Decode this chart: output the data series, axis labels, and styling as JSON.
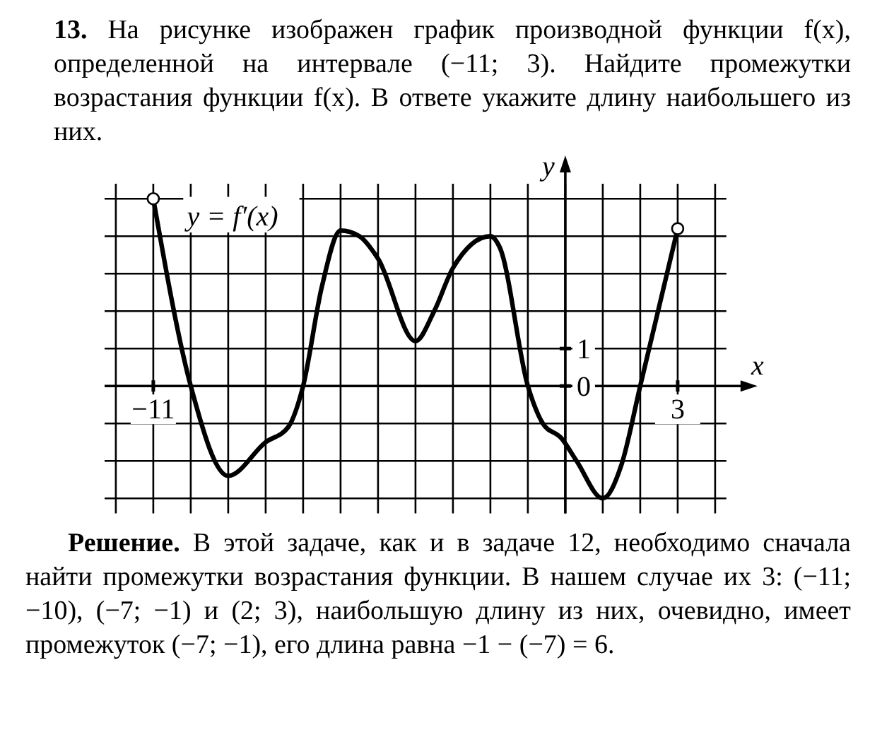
{
  "chart_data": {
    "type": "line",
    "title": "13. На рисунке изображен график производной функции f(x), определенной на интервале (−11; 3). Найдите промежутки возрастания функции f(x). В ответе укажите длину наибольшего из них.",
    "xlabel": "x",
    "ylabel": "y",
    "annotations": [
      "y = f′(x)",
      "Решение. В этой задаче, как и в задаче 12, необходимо сначала найти промежутки возрастания функции. В нашем случае их 3: (−11; −10), (−7; −1) и (2; 3), наибольшую длину из них, очевидно, имеет промежуток (−7; −1), его длина равна −1 − (−7) = 6."
    ],
    "x": [
      -11,
      -10,
      -9,
      -8,
      -7.4,
      -7,
      -6.5,
      -6,
      -5.5,
      -5,
      -4,
      -3.5,
      -3,
      -2,
      -1.75,
      -1,
      -0.6,
      -0.1,
      0.3,
      1,
      1.5,
      2,
      3
    ],
    "series": [
      {
        "color": "#000000",
        "values": [
          5,
          0,
          -2.4,
          -1.5,
          -1.1,
          0,
          2.65,
          4.15,
          4,
          3.4,
          1.2,
          2,
          3.15,
          4,
          3.7,
          0,
          -1,
          -1.4,
          -2,
          -3,
          -2.1,
          0,
          4.2
        ]
      }
    ],
    "xlim": [
      -12.3,
      4.3
    ],
    "ylim": [
      -3.4,
      5.4
    ],
    "xticks": [
      {
        "value": -12,
        "label": null
      },
      {
        "value": -11,
        "label": "−11"
      },
      {
        "value": -10,
        "label": null
      },
      {
        "value": -9,
        "label": null
      },
      {
        "value": -8,
        "label": null
      },
      {
        "value": -7,
        "label": null
      },
      {
        "value": -6,
        "label": null
      },
      {
        "value": -5,
        "label": null
      },
      {
        "value": -4,
        "label": null
      },
      {
        "value": -3,
        "label": null
      },
      {
        "value": -2,
        "label": null
      },
      {
        "value": -1,
        "label": null
      },
      {
        "value": 0,
        "label": null
      },
      {
        "value": 1,
        "label": null
      },
      {
        "value": 2,
        "label": null
      },
      {
        "value": 3,
        "label": "3"
      },
      {
        "value": 4,
        "label": null
      }
    ],
    "yticks": [
      {
        "value": -3,
        "label": null
      },
      {
        "value": -2,
        "label": null
      },
      {
        "value": -1,
        "label": null
      },
      {
        "value": 0,
        "label": "0"
      },
      {
        "value": 1,
        "label": "1"
      },
      {
        "value": 2,
        "label": null
      },
      {
        "value": 3,
        "label": null
      },
      {
        "value": 4,
        "label": null
      },
      {
        "value": 5,
        "label": null
      }
    ],
    "grid": true,
    "marker": "none",
    "line_style": "solid"
  }
}
